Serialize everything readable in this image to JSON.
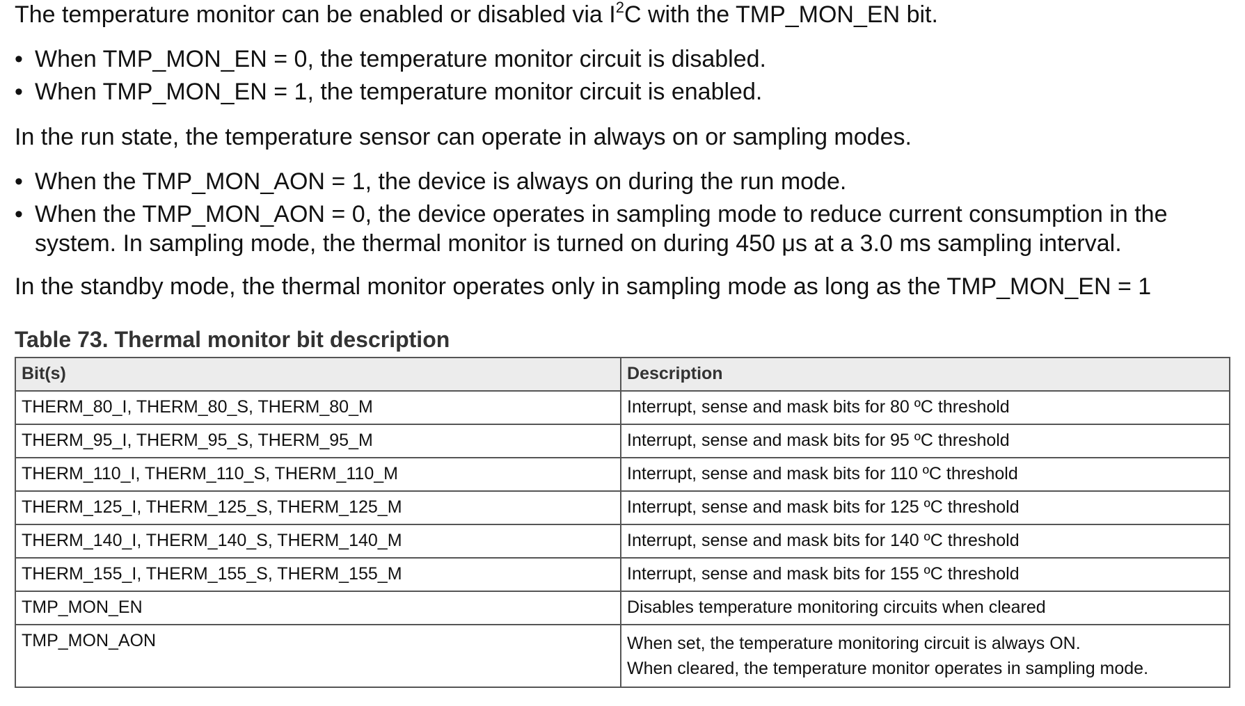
{
  "paragraphs": {
    "intro_before_sup": "The temperature monitor can be enabled or disabled via I",
    "intro_sup": "2",
    "intro_after_sup": "C with the TMP_MON_EN bit.",
    "run_state": "In the run state, the temperature sensor can operate in always on or sampling modes.",
    "standby": "In the standby mode, the thermal monitor operates only in sampling mode as long as the TMP_MON_EN = 1"
  },
  "bullets_enable": [
    "When TMP_MON_EN = 0, the temperature monitor circuit is disabled.",
    "When TMP_MON_EN = 1, the temperature monitor circuit is enabled."
  ],
  "bullets_mode": [
    "When the TMP_MON_AON = 1, the device is always on during the run mode.",
    "When the TMP_MON_AON = 0, the device operates in sampling mode to reduce current consumption in the system. In sampling mode, the thermal monitor is turned on during 450 μs at a 3.0 ms sampling interval."
  ],
  "bullet_symbol": "•",
  "table": {
    "title": "Table 73.  Thermal monitor bit description",
    "headers": [
      "Bit(s)",
      "Description"
    ],
    "rows": [
      {
        "bits": "THERM_80_I, THERM_80_S, THERM_80_M",
        "description": "Interrupt, sense and mask bits for 80 ºC threshold"
      },
      {
        "bits": "THERM_95_I, THERM_95_S, THERM_95_M",
        "description": "Interrupt, sense and mask bits for 95 ºC threshold"
      },
      {
        "bits": "THERM_110_I, THERM_110_S, THERM_110_M",
        "description": "Interrupt, sense and mask bits for 110 ºC threshold"
      },
      {
        "bits": "THERM_125_I, THERM_125_S, THERM_125_M",
        "description": "Interrupt, sense and mask bits for 125 ºC threshold"
      },
      {
        "bits": "THERM_140_I, THERM_140_S, THERM_140_M",
        "description": "Interrupt, sense and mask bits for 140 ºC threshold"
      },
      {
        "bits": "THERM_155_I, THERM_155_S, THERM_155_M",
        "description": "Interrupt, sense and mask bits for 155 ºC threshold"
      },
      {
        "bits": "TMP_MON_EN",
        "description": "Disables temperature monitoring circuits when cleared"
      }
    ],
    "last_row": {
      "bits": "TMP_MON_AON",
      "description_line1": "When set, the temperature monitoring circuit is always ON.",
      "description_line2": "When cleared, the temperature monitor operates in sampling mode."
    }
  }
}
